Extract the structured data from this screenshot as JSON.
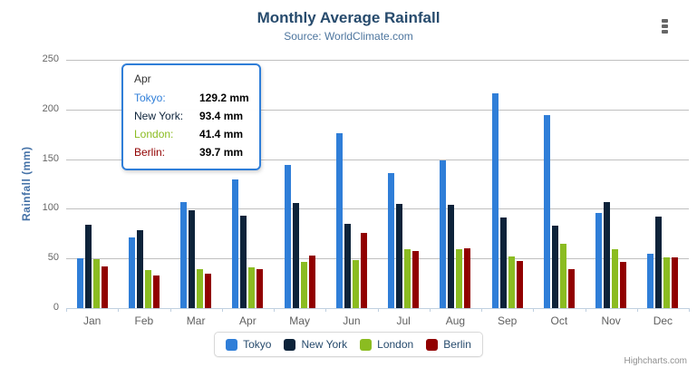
{
  "chart": {
    "title": "Monthly Average Rainfall",
    "subtitle": "Source: WorldClimate.com",
    "y_axis_title": "Rainfall (mm)",
    "credits": "Highcharts.com"
  },
  "tooltip": {
    "header": "Apr",
    "rows": [
      {
        "name": "Tokyo:",
        "value": "129.2 mm",
        "color": "#2f7ed8"
      },
      {
        "name": "New York:",
        "value": "93.4 mm",
        "color": "#0d233a"
      },
      {
        "name": "London:",
        "value": "41.4 mm",
        "color": "#8bbc21"
      },
      {
        "name": "Berlin:",
        "value": "39.7 mm",
        "color": "#910000"
      }
    ]
  },
  "legend": {
    "items": [
      {
        "label": "Tokyo",
        "color": "#2f7ed8"
      },
      {
        "label": "New York",
        "color": "#0d233a"
      },
      {
        "label": "London",
        "color": "#8bbc21"
      },
      {
        "label": "Berlin",
        "color": "#910000"
      }
    ]
  },
  "colors": {
    "title_text": "#274b6d",
    "subtitle_text": "#4d759e",
    "axis_title_text": "#4572a7",
    "axis_label_text": "#666666",
    "gridline": "#c0c0c0",
    "axis_line": "#c0d0e0",
    "tooltip_border": "#2f7ed8",
    "credits_text": "#909090"
  },
  "chart_data": {
    "type": "bar",
    "title": "Monthly Average Rainfall",
    "subtitle": "Source: WorldClimate.com",
    "xlabel": "",
    "ylabel": "Rainfall (mm)",
    "ylim": [
      0,
      250
    ],
    "ytick_interval": 50,
    "grid": true,
    "legend_position": "bottom",
    "categories": [
      "Jan",
      "Feb",
      "Mar",
      "Apr",
      "May",
      "Jun",
      "Jul",
      "Aug",
      "Sep",
      "Oct",
      "Nov",
      "Dec"
    ],
    "series": [
      {
        "name": "Tokyo",
        "color": "#2f7ed8",
        "values": [
          49.9,
          71.5,
          106.4,
          129.2,
          144.0,
          176.0,
          135.6,
          148.5,
          216.4,
          194.1,
          95.6,
          54.4
        ]
      },
      {
        "name": "New York",
        "color": "#0d233a",
        "values": [
          83.6,
          78.8,
          98.5,
          93.4,
          106.0,
          84.5,
          105.0,
          104.3,
          91.2,
          83.5,
          106.6,
          92.3
        ]
      },
      {
        "name": "London",
        "color": "#8bbc21",
        "values": [
          48.9,
          38.8,
          39.3,
          41.4,
          47.0,
          48.3,
          59.0,
          59.6,
          52.4,
          65.2,
          59.3,
          51.2
        ]
      },
      {
        "name": "Berlin",
        "color": "#910000",
        "values": [
          42.4,
          33.2,
          34.5,
          39.7,
          52.6,
          75.5,
          57.4,
          60.4,
          47.6,
          39.1,
          46.8,
          51.1
        ]
      }
    ],
    "tooltip_shown": {
      "category": "Apr",
      "values": {
        "Tokyo": 129.2,
        "New York": 93.4,
        "London": 41.4,
        "Berlin": 39.7
      }
    }
  }
}
